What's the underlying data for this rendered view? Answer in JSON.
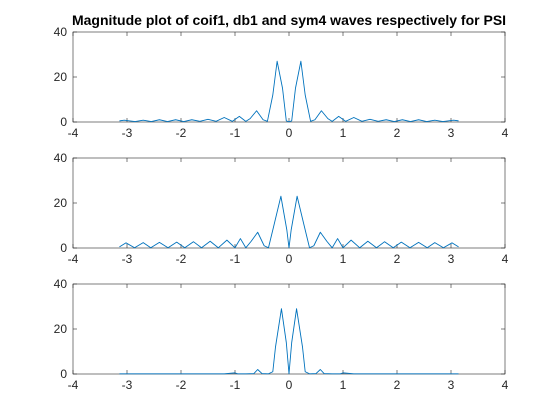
{
  "figure": {
    "title": "Magnitude plot of coif1, db1 and sym4 waves respectively for PSI"
  },
  "colors": {
    "series": "#0072BD",
    "axes": "#262626",
    "background": "#ffffff"
  },
  "chart_data": [
    {
      "type": "line",
      "name": "",
      "xlim": [
        -4,
        4
      ],
      "ylim": [
        0,
        40
      ],
      "xticks": [
        "-4",
        "-3",
        "-2",
        "-1",
        "0",
        "1",
        "2",
        "3",
        "4"
      ],
      "yticks": [
        "0",
        "20",
        "40"
      ],
      "grid": false,
      "series": [
        {
          "x": [
            -3.14,
            -3.05,
            -2.85,
            -2.7,
            -2.55,
            -2.4,
            -2.25,
            -2.1,
            -1.95,
            -1.8,
            -1.65,
            -1.5,
            -1.35,
            -1.2,
            -1.05,
            -0.92,
            -0.8,
            -0.72,
            -0.6,
            -0.48,
            -0.4,
            -0.3,
            -0.22,
            -0.12,
            -0.05,
            0,
            0.05,
            0.12,
            0.22,
            0.3,
            0.4,
            0.48,
            0.6,
            0.72,
            0.8,
            0.92,
            1.05,
            1.2,
            1.35,
            1.5,
            1.65,
            1.8,
            1.95,
            2.1,
            2.25,
            2.4,
            2.55,
            2.7,
            2.85,
            3.05,
            3.14
          ],
          "y": [
            0.5,
            0.8,
            0.2,
            0.8,
            0.2,
            1.0,
            0.2,
            1.0,
            0.2,
            1.0,
            0.3,
            1.2,
            0.3,
            2.0,
            0.3,
            2.5,
            0.3,
            1.5,
            5.0,
            1.0,
            0.3,
            12.0,
            27.0,
            15.0,
            0.5,
            0.1,
            0.5,
            15.0,
            27.0,
            12.0,
            0.3,
            1.0,
            5.0,
            1.5,
            0.3,
            2.5,
            0.3,
            2.0,
            0.3,
            1.2,
            0.3,
            1.0,
            0.2,
            1.0,
            0.2,
            1.0,
            0.2,
            0.8,
            0.2,
            0.8,
            0.5
          ]
        }
      ]
    },
    {
      "type": "line",
      "name": "",
      "xlim": [
        -4,
        4
      ],
      "ylim": [
        0,
        40
      ],
      "xticks": [
        "-4",
        "-3",
        "-2",
        "-1",
        "0",
        "1",
        "2",
        "3",
        "4"
      ],
      "yticks": [
        "0",
        "20",
        "40"
      ],
      "grid": false,
      "series": [
        {
          "x": [
            -3.14,
            -3.02,
            -2.86,
            -2.7,
            -2.56,
            -2.4,
            -2.24,
            -2.08,
            -1.93,
            -1.77,
            -1.62,
            -1.46,
            -1.31,
            -1.15,
            -1.0,
            -0.9,
            -0.8,
            -0.7,
            -0.58,
            -0.46,
            -0.38,
            -0.28,
            -0.15,
            -0.04,
            0,
            0.04,
            0.15,
            0.28,
            0.38,
            0.46,
            0.58,
            0.7,
            0.8,
            0.9,
            1.0,
            1.15,
            1.31,
            1.46,
            1.62,
            1.77,
            1.93,
            2.08,
            2.24,
            2.4,
            2.56,
            2.7,
            2.86,
            3.02,
            3.14
          ],
          "y": [
            0.5,
            2.3,
            0.1,
            2.4,
            0.1,
            2.5,
            0.1,
            2.6,
            0.1,
            2.8,
            0.1,
            3.0,
            0.1,
            3.5,
            0.1,
            4.2,
            0.1,
            3.0,
            7.0,
            1.0,
            0.1,
            10.0,
            23.0,
            8.0,
            0.1,
            8.0,
            23.0,
            10.0,
            0.1,
            1.0,
            7.0,
            3.0,
            0.1,
            4.2,
            0.1,
            3.5,
            0.1,
            3.0,
            0.1,
            2.8,
            0.1,
            2.6,
            0.1,
            2.5,
            0.1,
            2.4,
            0.1,
            2.3,
            0.5
          ]
        }
      ]
    },
    {
      "type": "line",
      "name": "",
      "xlim": [
        -4,
        4
      ],
      "ylim": [
        0,
        40
      ],
      "xticks": [
        "-4",
        "-3",
        "-2",
        "-1",
        "0",
        "1",
        "2",
        "3",
        "4"
      ],
      "yticks": [
        "0",
        "20",
        "40"
      ],
      "grid": false,
      "series": [
        {
          "x": [
            -3.14,
            -2.0,
            -1.2,
            -1.0,
            -0.95,
            -0.8,
            -0.65,
            -0.58,
            -0.5,
            -0.38,
            -0.3,
            -0.25,
            -0.14,
            -0.05,
            0,
            0.05,
            0.14,
            0.25,
            0.3,
            0.38,
            0.5,
            0.58,
            0.65,
            0.8,
            0.95,
            1.0,
            1.2,
            2.0,
            3.14
          ],
          "y": [
            0.1,
            0.1,
            0.1,
            0.5,
            0.1,
            0.1,
            0.2,
            2.0,
            0.2,
            0.1,
            1.0,
            12.0,
            29.0,
            14.0,
            0.1,
            14.0,
            29.0,
            12.0,
            1.0,
            0.1,
            0.2,
            2.0,
            0.2,
            0.1,
            0.1,
            0.5,
            0.1,
            0.1,
            0.1
          ]
        }
      ]
    }
  ]
}
